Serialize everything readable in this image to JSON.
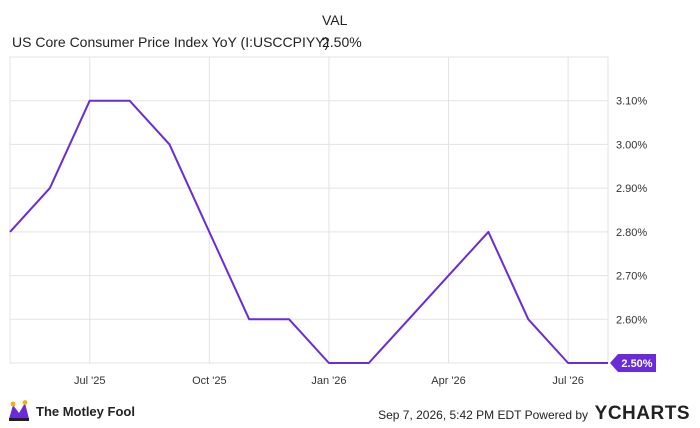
{
  "legend": {
    "header_val": "VAL",
    "series_name": "US Core Consumer Price Index YoY (I:USCCPIYY)",
    "series_value": "2.50%"
  },
  "footer": {
    "brand": "The Motley Fool",
    "timestamp": "Sep 7, 2026, 5:42 PM EDT Powered by",
    "provider": "YCHARTS"
  },
  "colors": {
    "line": "#6a2bd9",
    "badge": "#6a2bd9",
    "grid": "#e3e3e3"
  },
  "chart_data": {
    "type": "line",
    "title": "",
    "xlabel": "",
    "ylabel": "",
    "x_ticks": [
      "Jul '25",
      "Oct '25",
      "Jan '26",
      "Apr '26",
      "Jul '26"
    ],
    "y_ticks": [
      "2.60%",
      "2.70%",
      "2.80%",
      "2.90%",
      "3.00%",
      "3.10%"
    ],
    "ylim": [
      2.5,
      3.2
    ],
    "grid": true,
    "series": [
      {
        "name": "US Core Consumer Price Index YoY (I:USCCPIYY)",
        "x": [
          "2025-05",
          "2025-06",
          "2025-07",
          "2025-08",
          "2025-09",
          "2025-10",
          "2025-11",
          "2025-12",
          "2026-01",
          "2026-02",
          "2026-03",
          "2026-04",
          "2026-05",
          "2026-06",
          "2026-07",
          "2026-08"
        ],
        "values": [
          2.8,
          2.9,
          3.1,
          3.1,
          3.0,
          2.8,
          2.6,
          2.6,
          2.5,
          2.5,
          2.6,
          2.7,
          2.8,
          2.6,
          2.5,
          2.5
        ],
        "last_label": "2.50%"
      }
    ]
  }
}
